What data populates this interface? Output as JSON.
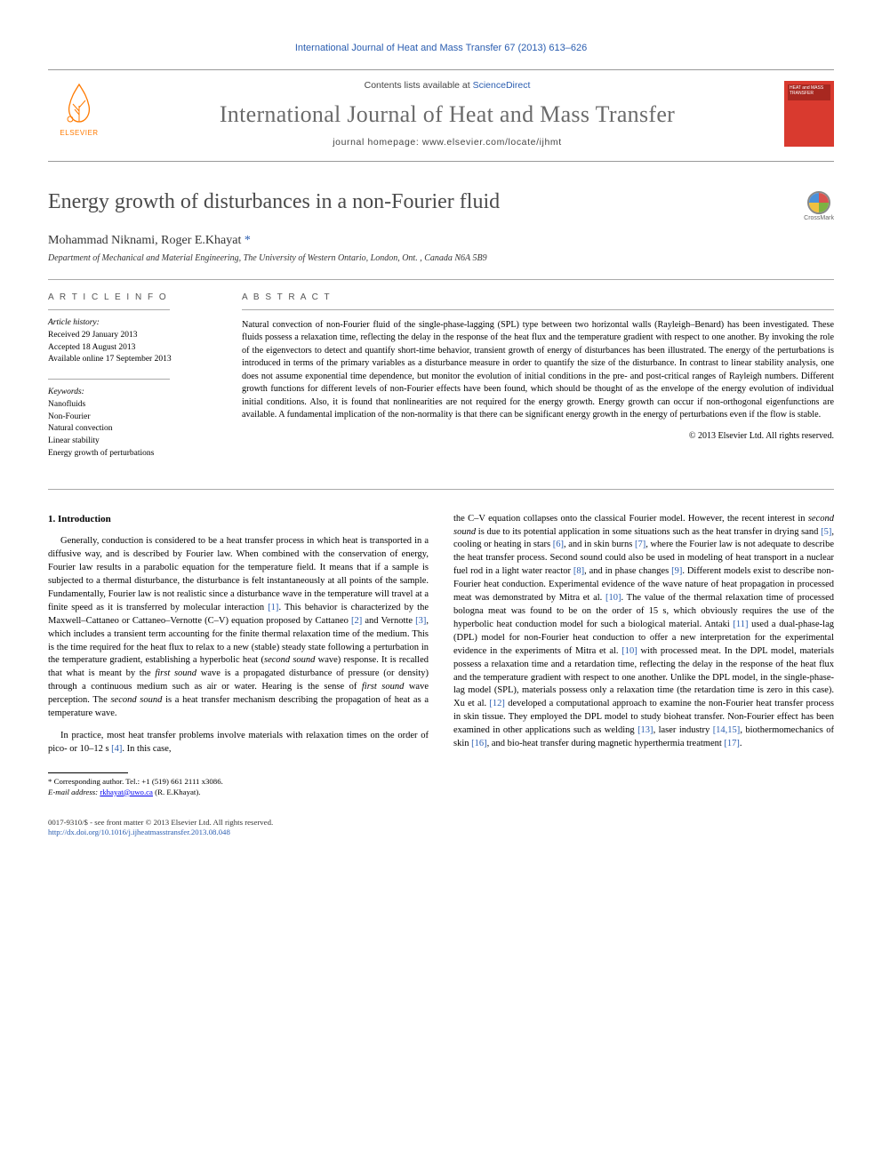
{
  "top_citation": "International Journal of Heat and Mass Transfer 67 (2013) 613–626",
  "contents_label": "Contents lists available at ",
  "contents_link": "ScienceDirect",
  "journal_title": "International Journal of Heat and Mass Transfer",
  "journal_home_label": "journal homepage: ",
  "journal_home_url": "www.elsevier.com/locate/ijhmt",
  "elsevier_text": "ELSEVIER",
  "cover_text": "HEAT and MASS TRANSFER",
  "crossmark_label": "CrossMark",
  "paper_title": "Energy growth of disturbances in a non-Fourier fluid",
  "authors_html": "Mohammad Niknami, Roger E.Khayat",
  "corr_marker": "*",
  "affiliation": "Department of Mechanical and Material Engineering, The University of Western Ontario, London, Ont. , Canada N6A 5B9",
  "article_info_label": "A R T I C L E   I N F O",
  "abstract_label": "A B S T R A C T",
  "history": {
    "head": "Article history:",
    "received": "Received 29 January 2013",
    "accepted": "Accepted 18 August 2013",
    "online": "Available online 17 September 2013"
  },
  "keywords": {
    "head": "Keywords:",
    "items": [
      "Nanofluids",
      "Non-Fourier",
      "Natural convection",
      "Linear stability",
      "Energy growth of perturbations"
    ]
  },
  "abstract_text": "Natural convection of non-Fourier fluid of the single-phase-lagging (SPL) type between two horizontal walls (Rayleigh–Benard) has been investigated. These fluids possess a relaxation time, reflecting the delay in the response of the heat flux and the temperature gradient with respect to one another. By invoking the role of the eigenvectors to detect and quantify short-time behavior, transient growth of energy of disturbances has been illustrated. The energy of the perturbations is introduced in terms of the primary variables as a disturbance measure in order to quantify the size of the disturbance. In contrast to linear stability analysis, one does not assume exponential time dependence, but monitor the evolution of initial conditions in the pre- and post-critical ranges of Rayleigh numbers. Different growth functions for different levels of non-Fourier effects have been found, which should be thought of as the envelope of the energy evolution of individual initial conditions. Also, it is found that nonlinearities are not required for the energy growth. Energy growth can occur if non-orthogonal eigenfunctions are available. A fundamental implication of the non-normality is that there can be significant energy growth in the energy of perturbations even if the flow is stable.",
  "copyright": "© 2013 Elsevier Ltd. All rights reserved.",
  "section1_head": "1. Introduction",
  "col1_p1": "Generally, conduction is considered to be a heat transfer process in which heat is transported in a diffusive way, and is described by Fourier law. When combined with the conservation of energy, Fourier law results in a parabolic equation for the temperature field. It means that if a sample is subjected to a thermal disturbance, the disturbance is felt instantaneously at all points of the sample. Fundamentally, Fourier law is not realistic since a disturbance wave in the temperature will travel at a finite speed as it is transferred by molecular interaction [1]. This behavior is characterized by the Maxwell–Cattaneo or Cattaneo–Vernotte (C–V) equation proposed by Cattaneo [2] and Vernotte [3], which includes a transient term accounting for the finite thermal relaxation time of the medium. This is the time required for the heat flux to relax to a new (stable) steady state following a perturbation in the temperature gradient, establishing a hyperbolic heat (second sound wave) response. It is recalled that what is meant by the first sound wave is a propagated disturbance of pressure (or density) through a continuous medium such as air or water. Hearing is the sense of first sound wave perception. The second sound is a heat transfer mechanism describing the propagation of heat as a temperature wave.",
  "col1_p2": "In practice, most heat transfer problems involve materials with relaxation times on the order of pico- or 10–12 s [4]. In this case,",
  "col2_p1": "the C–V equation collapses onto the classical Fourier model. However, the recent interest in second sound is due to its potential application in some situations such as the heat transfer in drying sand [5], cooling or heating in stars [6], and in skin burns [7], where the Fourier law is not adequate to describe the heat transfer process. Second sound could also be used in modeling of heat transport in a nuclear fuel rod in a light water reactor [8], and in phase changes [9]. Different models exist to describe non-Fourier heat conduction. Experimental evidence of the wave nature of heat propagation in processed meat was demonstrated by Mitra et al. [10]. The value of the thermal relaxation time of processed bologna meat was found to be on the order of 15 s, which obviously requires the use of the hyperbolic heat conduction model for such a biological material. Antaki [11] used a dual-phase-lag (DPL) model for non-Fourier heat conduction to offer a new interpretation for the experimental evidence in the experiments of Mitra et al. [10] with processed meat. In the DPL model, materials possess a relaxation time and a retardation time, reflecting the delay in the response of the heat flux and the temperature gradient with respect to one another. Unlike the DPL model, in the single-phase-lag model (SPL), materials possess only a relaxation time (the retardation time is zero in this case). Xu et al. [12] developed a computational approach to examine the non-Fourier heat transfer process in skin tissue. They employed the DPL model to study bioheat transfer. Non-Fourier effect has been examined in other applications such as welding [13], laser industry [14,15], biothermomechanics of skin [16], and bio-heat transfer during magnetic hyperthermia treatment [17].",
  "footnote_corr": "* Corresponding author. Tel.: +1 (519) 661 2111 x3086.",
  "footnote_email_label": "E-mail address: ",
  "footnote_email": "rkhayat@uwo.ca",
  "footnote_email_who": " (R. E.Khayat).",
  "footer_issn": "0017-9310/$ - see front matter © 2013 Elsevier Ltd. All rights reserved.",
  "footer_doi": "http://dx.doi.org/10.1016/j.ijheatmasstransfer.2013.08.048",
  "colors": {
    "link": "#2a5db0",
    "orange": "#ff7a00",
    "cover_bg": "#d93a2f",
    "grey_title": "#6b6b6b"
  }
}
